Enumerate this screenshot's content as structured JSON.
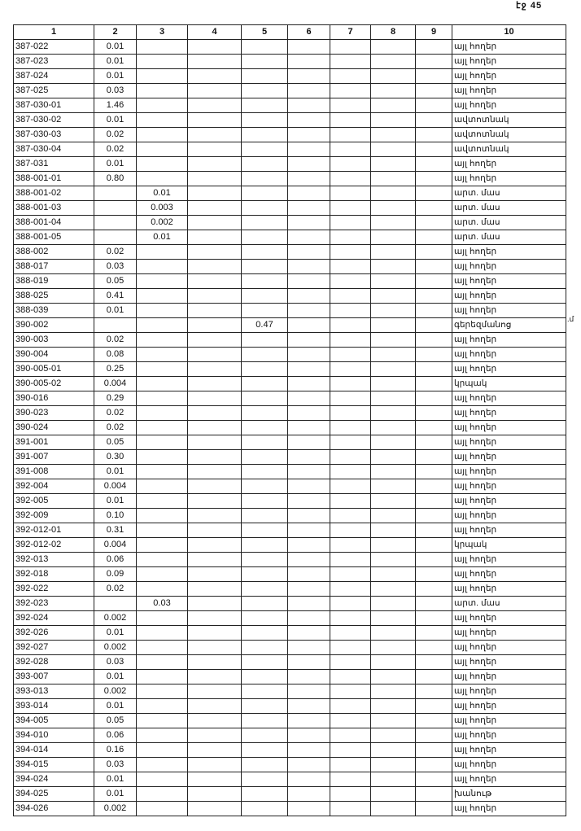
{
  "page_label": "էջ 45",
  "margin_note": ".մ",
  "headers": [
    "1",
    "2",
    "3",
    "4",
    "5",
    "6",
    "7",
    "8",
    "9",
    "10"
  ],
  "rows": [
    [
      "387-022",
      "0.01",
      "",
      "",
      "",
      "",
      "",
      "",
      "",
      "այլ հողեր"
    ],
    [
      "387-023",
      "0.01",
      "",
      "",
      "",
      "",
      "",
      "",
      "",
      "այլ հողեր"
    ],
    [
      "387-024",
      "0.01",
      "",
      "",
      "",
      "",
      "",
      "",
      "",
      "այլ հողեր"
    ],
    [
      "387-025",
      "0.03",
      "",
      "",
      "",
      "",
      "",
      "",
      "",
      "այլ հողեր"
    ],
    [
      "387-030-01",
      "1.46",
      "",
      "",
      "",
      "",
      "",
      "",
      "",
      "այլ հողեր"
    ],
    [
      "387-030-02",
      "0.01",
      "",
      "",
      "",
      "",
      "",
      "",
      "",
      "ավտոտնակ"
    ],
    [
      "387-030-03",
      "0.02",
      "",
      "",
      "",
      "",
      "",
      "",
      "",
      "ավտոտնակ"
    ],
    [
      "387-030-04",
      "0.02",
      "",
      "",
      "",
      "",
      "",
      "",
      "",
      "ավտոտնակ"
    ],
    [
      "387-031",
      "0.01",
      "",
      "",
      "",
      "",
      "",
      "",
      "",
      "այլ հողեր"
    ],
    [
      "388-001-01",
      "0.80",
      "",
      "",
      "",
      "",
      "",
      "",
      "",
      "այլ հողեր"
    ],
    [
      "388-001-02",
      "",
      "0.01",
      "",
      "",
      "",
      "",
      "",
      "",
      "արտ. մաս"
    ],
    [
      "388-001-03",
      "",
      "0.003",
      "",
      "",
      "",
      "",
      "",
      "",
      "արտ. մաս"
    ],
    [
      "388-001-04",
      "",
      "0.002",
      "",
      "",
      "",
      "",
      "",
      "",
      "արտ. մաս"
    ],
    [
      "388-001-05",
      "",
      "0.01",
      "",
      "",
      "",
      "",
      "",
      "",
      "արտ. մաս"
    ],
    [
      "388-002",
      "0.02",
      "",
      "",
      "",
      "",
      "",
      "",
      "",
      "այլ հողեր"
    ],
    [
      "388-017",
      "0.03",
      "",
      "",
      "",
      "",
      "",
      "",
      "",
      "այլ հողեր"
    ],
    [
      "388-019",
      "0.05",
      "",
      "",
      "",
      "",
      "",
      "",
      "",
      "այլ հողեր"
    ],
    [
      "388-025",
      "0.41",
      "",
      "",
      "",
      "",
      "",
      "",
      "",
      "այլ հողեր"
    ],
    [
      "388-039",
      "0.01",
      "",
      "",
      "",
      "",
      "",
      "",
      "",
      "այլ հողեր"
    ],
    [
      "390-002",
      "",
      "",
      "",
      "0.47",
      "",
      "",
      "",
      "",
      "գերեզմանոց"
    ],
    [
      "390-003",
      "0.02",
      "",
      "",
      "",
      "",
      "",
      "",
      "",
      "այլ հողեր"
    ],
    [
      "390-004",
      "0.08",
      "",
      "",
      "",
      "",
      "",
      "",
      "",
      "այլ հողեր"
    ],
    [
      "390-005-01",
      "0.25",
      "",
      "",
      "",
      "",
      "",
      "",
      "",
      "այլ հողեր"
    ],
    [
      "390-005-02",
      "0.004",
      "",
      "",
      "",
      "",
      "",
      "",
      "",
      "կրպակ"
    ],
    [
      "390-016",
      "0.29",
      "",
      "",
      "",
      "",
      "",
      "",
      "",
      "այլ հողեր"
    ],
    [
      "390-023",
      "0.02",
      "",
      "",
      "",
      "",
      "",
      "",
      "",
      "այլ հողեր"
    ],
    [
      "390-024",
      "0.02",
      "",
      "",
      "",
      "",
      "",
      "",
      "",
      "այլ հողեր"
    ],
    [
      "391-001",
      "0.05",
      "",
      "",
      "",
      "",
      "",
      "",
      "",
      "այլ հողեր"
    ],
    [
      "391-007",
      "0.30",
      "",
      "",
      "",
      "",
      "",
      "",
      "",
      "այլ հողեր"
    ],
    [
      "391-008",
      "0.01",
      "",
      "",
      "",
      "",
      "",
      "",
      "",
      "այլ հողեր"
    ],
    [
      "392-004",
      "0.004",
      "",
      "",
      "",
      "",
      "",
      "",
      "",
      "այլ հողեր"
    ],
    [
      "392-005",
      "0.01",
      "",
      "",
      "",
      "",
      "",
      "",
      "",
      "այլ հողեր"
    ],
    [
      "392-009",
      "0.10",
      "",
      "",
      "",
      "",
      "",
      "",
      "",
      "այլ հողեր"
    ],
    [
      "392-012-01",
      "0.31",
      "",
      "",
      "",
      "",
      "",
      "",
      "",
      "այլ հողեր"
    ],
    [
      "392-012-02",
      "0.004",
      "",
      "",
      "",
      "",
      "",
      "",
      "",
      "կրպակ"
    ],
    [
      "392-013",
      "0.06",
      "",
      "",
      "",
      "",
      "",
      "",
      "",
      "այլ հողեր"
    ],
    [
      "392-018",
      "0.09",
      "",
      "",
      "",
      "",
      "",
      "",
      "",
      "այլ հողեր"
    ],
    [
      "392-022",
      "0.02",
      "",
      "",
      "",
      "",
      "",
      "",
      "",
      "այլ հողեր"
    ],
    [
      "392-023",
      "",
      "0.03",
      "",
      "",
      "",
      "",
      "",
      "",
      "արտ. մաս"
    ],
    [
      "392-024",
      "0.002",
      "",
      "",
      "",
      "",
      "",
      "",
      "",
      "այլ հողեր"
    ],
    [
      "392-026",
      "0.01",
      "",
      "",
      "",
      "",
      "",
      "",
      "",
      "այլ հողեր"
    ],
    [
      "392-027",
      "0.002",
      "",
      "",
      "",
      "",
      "",
      "",
      "",
      "այլ հողեր"
    ],
    [
      "392-028",
      "0.03",
      "",
      "",
      "",
      "",
      "",
      "",
      "",
      "այլ հողեր"
    ],
    [
      "393-007",
      "0.01",
      "",
      "",
      "",
      "",
      "",
      "",
      "",
      "այլ հողեր"
    ],
    [
      "393-013",
      "0.002",
      "",
      "",
      "",
      "",
      "",
      "",
      "",
      "այլ հողեր"
    ],
    [
      "393-014",
      "0.01",
      "",
      "",
      "",
      "",
      "",
      "",
      "",
      "այլ հողեր"
    ],
    [
      "394-005",
      "0.05",
      "",
      "",
      "",
      "",
      "",
      "",
      "",
      "այլ հողեր"
    ],
    [
      "394-010",
      "0.06",
      "",
      "",
      "",
      "",
      "",
      "",
      "",
      "այլ հողեր"
    ],
    [
      "394-014",
      "0.16",
      "",
      "",
      "",
      "",
      "",
      "",
      "",
      "այլ հողեր"
    ],
    [
      "394-015",
      "0.03",
      "",
      "",
      "",
      "",
      "",
      "",
      "",
      "այլ հողեր"
    ],
    [
      "394-024",
      "0.01",
      "",
      "",
      "",
      "",
      "",
      "",
      "",
      "այլ հողեր"
    ],
    [
      "394-025",
      "0.01",
      "",
      "",
      "",
      "",
      "",
      "",
      "",
      "խանութ"
    ],
    [
      "394-026",
      "0.002",
      "",
      "",
      "",
      "",
      "",
      "",
      "",
      "այլ հողեր"
    ]
  ]
}
